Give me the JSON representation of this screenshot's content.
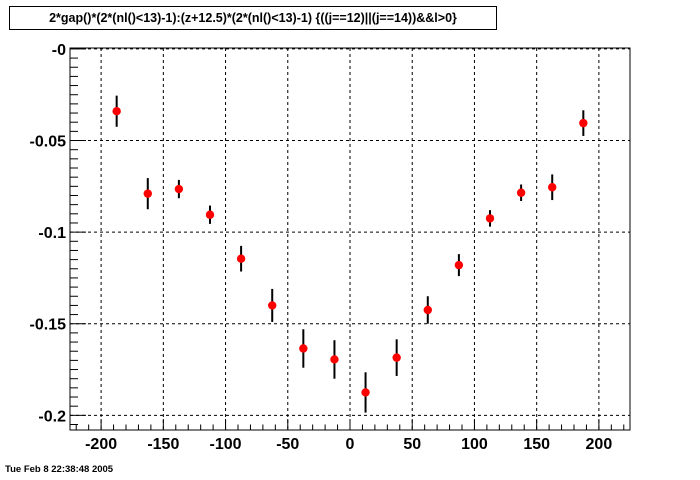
{
  "chart_data": {
    "type": "scatter",
    "title": "2*gap()*(2*(nl()<13)-1):(z+12.5)*(2*(nl()<13)-1) {((j==12)||(j==14))&&l>0}",
    "xlabel": "",
    "ylabel": "",
    "xlim": [
      -225,
      225
    ],
    "ylim": [
      -0.208,
      0.0005
    ],
    "xticks": [
      -200,
      -150,
      -100,
      -50,
      0,
      50,
      100,
      150,
      200
    ],
    "xtick_labels": [
      "-200",
      "-150",
      "-100",
      "-50",
      "0",
      "50",
      "100",
      "150",
      "200"
    ],
    "yticks": [
      0,
      -0.05,
      -0.1,
      -0.15,
      -0.2
    ],
    "ytick_labels": [
      "-0",
      "-0.05",
      "-0.1",
      "-0.15",
      "-0.2"
    ],
    "grid": true,
    "marker_color": "#ff0000",
    "error_bar_color": "#000000",
    "points": [
      {
        "x": -187.5,
        "y": -0.034,
        "yerr": 0.0085
      },
      {
        "x": -162.5,
        "y": -0.079,
        "yerr": 0.0085
      },
      {
        "x": -137.5,
        "y": -0.0765,
        "yerr": 0.005
      },
      {
        "x": -112.5,
        "y": -0.0905,
        "yerr": 0.005
      },
      {
        "x": -87.5,
        "y": -0.1145,
        "yerr": 0.007
      },
      {
        "x": -62.5,
        "y": -0.14,
        "yerr": 0.009
      },
      {
        "x": -37.5,
        "y": -0.1635,
        "yerr": 0.0105
      },
      {
        "x": -12.5,
        "y": -0.1695,
        "yerr": 0.0105
      },
      {
        "x": 12.5,
        "y": -0.1875,
        "yerr": 0.011
      },
      {
        "x": 37.5,
        "y": -0.1685,
        "yerr": 0.01
      },
      {
        "x": 62.5,
        "y": -0.1425,
        "yerr": 0.0075
      },
      {
        "x": 87.5,
        "y": -0.118,
        "yerr": 0.006
      },
      {
        "x": 112.5,
        "y": -0.0925,
        "yerr": 0.0045
      },
      {
        "x": 137.5,
        "y": -0.0785,
        "yerr": 0.0045
      },
      {
        "x": 162.5,
        "y": -0.0755,
        "yerr": 0.007
      },
      {
        "x": 187.5,
        "y": -0.0405,
        "yerr": 0.007
      }
    ]
  },
  "timestamp": "Tue Feb  8 22:38:48 2005"
}
